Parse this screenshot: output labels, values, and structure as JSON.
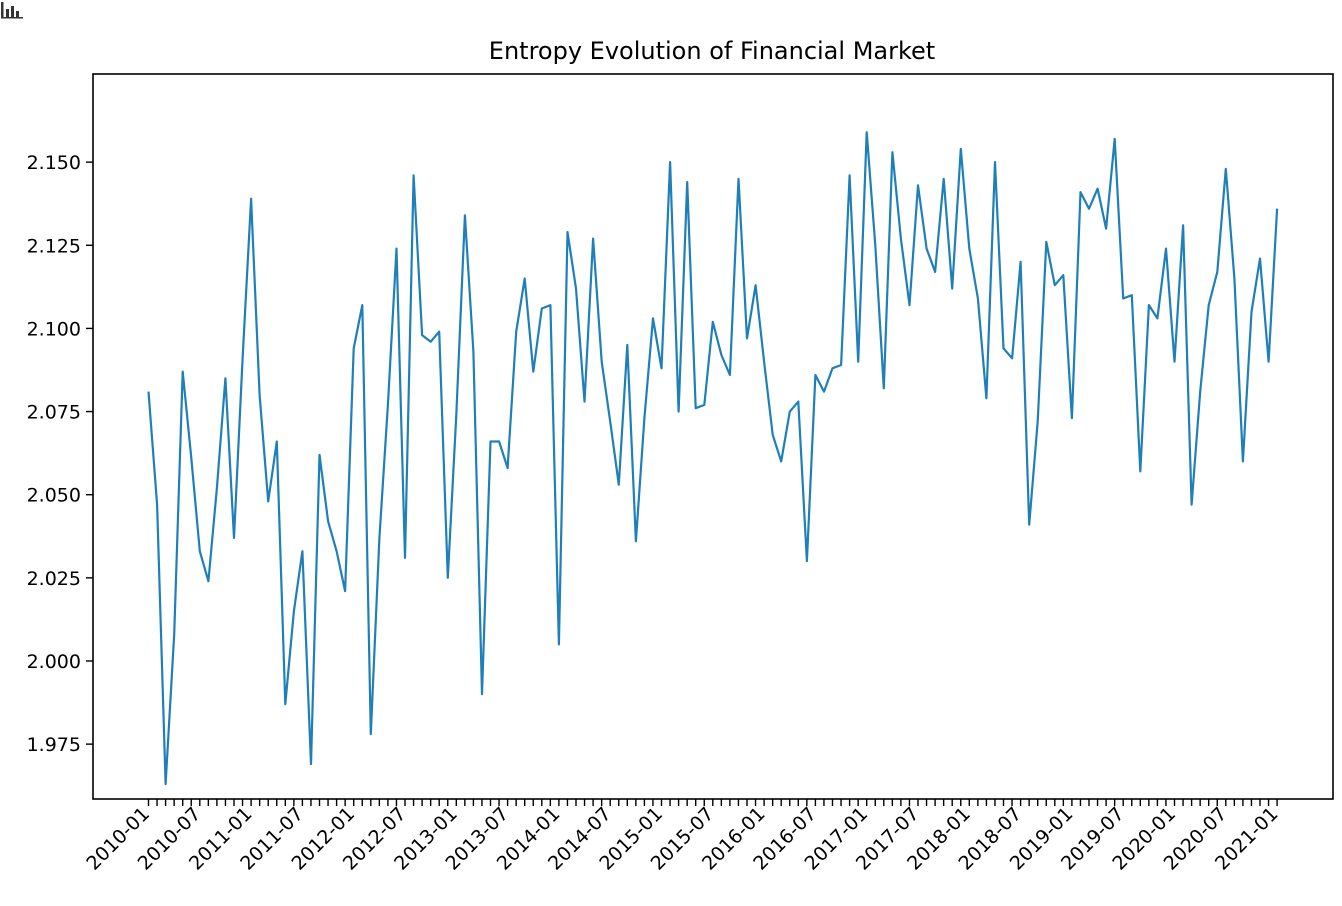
{
  "chart_data": {
    "type": "line",
    "title": "Entropy Evolution of Financial Market",
    "xlabel": "",
    "ylabel": "",
    "x_start": "2010-01",
    "x_frequency": "monthly",
    "x_tick_labels": [
      "2010-01",
      "2010-07",
      "2011-01",
      "2011-07",
      "2012-01",
      "2012-07",
      "2013-01",
      "2013-07",
      "2014-01",
      "2014-07",
      "2015-01",
      "2015-07",
      "2016-01",
      "2016-07",
      "2017-01",
      "2017-07",
      "2018-01",
      "2018-07",
      "2019-01",
      "2019-07",
      "2020-01",
      "2020-07",
      "2021-01"
    ],
    "y_tick_labels": [
      "1.975",
      "2.000",
      "2.025",
      "2.050",
      "2.075",
      "2.100",
      "2.125",
      "2.150"
    ],
    "ylim": [
      1.9585,
      2.1765
    ],
    "grid": false,
    "color": "#1f7fb8",
    "series": [
      {
        "values": [
          2.081,
          2.047,
          1.963,
          2.008,
          2.087,
          2.061,
          2.033,
          2.024,
          2.052,
          2.085,
          2.037,
          2.091,
          2.139,
          2.08,
          2.048,
          2.066,
          1.987,
          2.015,
          2.033,
          1.969,
          2.062,
          2.042,
          2.033,
          2.021,
          2.094,
          2.107,
          1.978,
          2.037,
          2.077,
          2.124,
          2.031,
          2.146,
          2.098,
          2.096,
          2.099,
          2.025,
          2.074,
          2.134,
          2.093,
          1.99,
          2.066,
          2.066,
          2.058,
          2.099,
          2.115,
          2.087,
          2.106,
          2.107,
          2.005,
          2.129,
          2.112,
          2.078,
          2.127,
          2.09,
          2.072,
          2.053,
          2.095,
          2.036,
          2.073,
          2.103,
          2.088,
          2.15,
          2.075,
          2.144,
          2.076,
          2.077,
          2.102,
          2.092,
          2.086,
          2.145,
          2.097,
          2.113,
          2.09,
          2.068,
          2.06,
          2.075,
          2.078,
          2.03,
          2.086,
          2.081,
          2.088,
          2.089,
          2.146,
          2.09,
          2.159,
          2.125,
          2.082,
          2.153,
          2.127,
          2.107,
          2.143,
          2.124,
          2.117,
          2.145,
          2.112,
          2.154,
          2.124,
          2.109,
          2.079,
          2.15,
          2.094,
          2.091,
          2.12,
          2.041,
          2.072,
          2.126,
          2.113,
          2.116,
          2.073,
          2.141,
          2.136,
          2.142,
          2.13,
          2.157,
          2.109,
          2.11,
          2.057,
          2.107,
          2.103,
          2.124,
          2.09,
          2.131,
          2.047,
          2.081,
          2.107,
          2.117,
          2.148,
          2.115,
          2.06,
          2.105,
          2.121,
          2.09,
          2.136
        ]
      }
    ]
  }
}
